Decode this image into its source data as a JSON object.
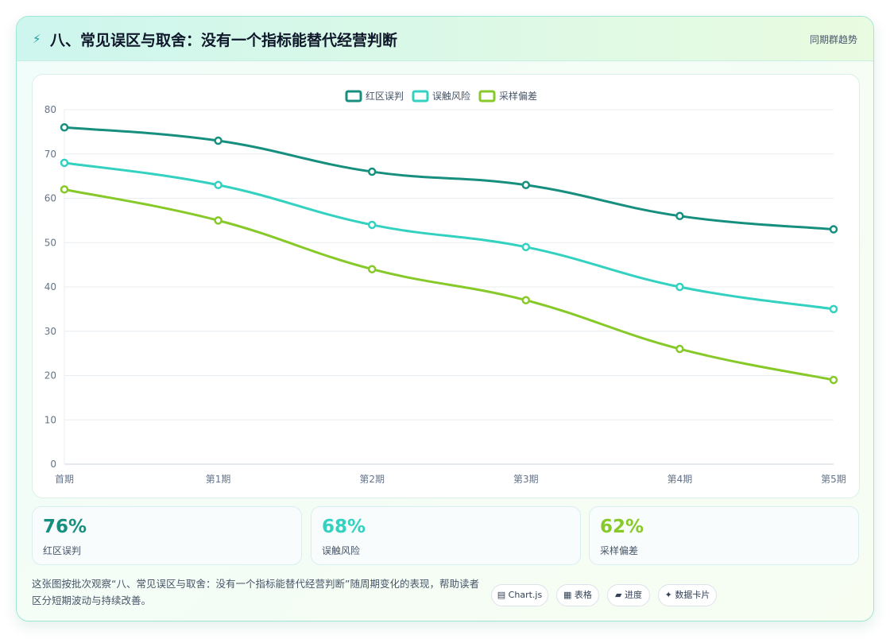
{
  "header": {
    "icon": "lightning-icon",
    "icon_glyph": "⚡",
    "title": "八、常见误区与取舍：没有一个指标能替代经营判断",
    "tag": "同期群趋势"
  },
  "chart_data": {
    "type": "line",
    "categories": [
      "首期",
      "第1期",
      "第2期",
      "第3期",
      "第4期",
      "第5期"
    ],
    "series": [
      {
        "name": "红区误判",
        "color": "#178f7f",
        "values": [
          76,
          73,
          66,
          63,
          56,
          53
        ]
      },
      {
        "name": "误触风险",
        "color": "#33d1c0",
        "values": [
          68,
          63,
          54,
          49,
          40,
          35
        ]
      },
      {
        "name": "采样偏差",
        "color": "#86c928",
        "values": [
          62,
          55,
          44,
          37,
          26,
          19
        ]
      }
    ],
    "ylim": [
      0,
      80
    ],
    "yticks": [
      0,
      10,
      20,
      30,
      40,
      50,
      60,
      70,
      80
    ],
    "grid": true,
    "legend": "top-center",
    "xlabel": "",
    "ylabel": ""
  },
  "kpis": [
    {
      "value": "76%",
      "label": "红区误判",
      "color": "#178f7f"
    },
    {
      "value": "68%",
      "label": "误触风险",
      "color": "#33d1c0"
    },
    {
      "value": "62%",
      "label": "采样偏差",
      "color": "#86c928"
    }
  ],
  "footer": {
    "description": "这张图按批次观察“八、常见误区与取舍：没有一个指标能替代经营判断”随周期变化的表现，帮助读者区分短期波动与持续改善。",
    "chips": [
      "▤ Chart.js",
      "▦ 表格",
      "▰ 进度",
      "✦ 数据卡片"
    ]
  }
}
